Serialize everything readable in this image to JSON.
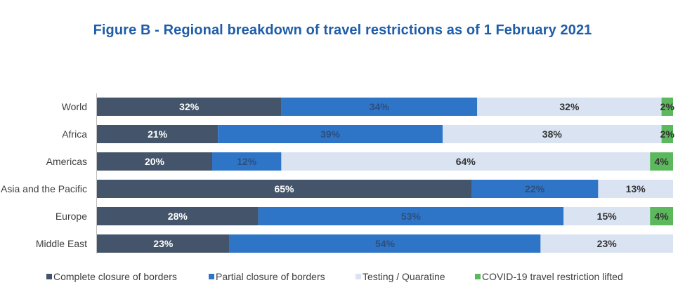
{
  "chart_data": {
    "type": "bar",
    "orientation": "horizontal",
    "stacked": true,
    "percent": true,
    "title": "Figure B - Regional breakdown of travel restrictions as of 1 February 2021",
    "categories": [
      "World",
      "Africa",
      "Americas",
      "Asia and the Pacific",
      "Europe",
      "Middle East"
    ],
    "series": [
      {
        "name": "Complete closure of borders",
        "color": "#44546a",
        "label_color": "#ffffff",
        "values": [
          32,
          21,
          20,
          65,
          28,
          23
        ]
      },
      {
        "name": "Partial closure of borders",
        "color": "#2e75c8",
        "label_color": "#2f4e7a",
        "values": [
          34,
          39,
          12,
          22,
          53,
          54
        ]
      },
      {
        "name": "Testing / Quaratine",
        "color": "#d9e3f1",
        "label_color": "#333333",
        "values": [
          32,
          38,
          64,
          13,
          15,
          23
        ]
      },
      {
        "name": "COVID-19 travel restriction lifted",
        "color": "#5cb85c",
        "label_color": "#333333",
        "values": [
          2,
          2,
          4,
          0,
          4,
          0
        ]
      }
    ],
    "labels": [
      [
        "32%",
        "34%",
        "32%",
        "2%"
      ],
      [
        "21%",
        "39%",
        "38%",
        "2%"
      ],
      [
        "20%",
        "12%",
        "64%",
        "4%"
      ],
      [
        "65%",
        "22%",
        "13%",
        ""
      ],
      [
        "28%",
        "53%",
        "15%",
        "4%"
      ],
      [
        "23%",
        "54%",
        "23%",
        ""
      ]
    ],
    "xlim": [
      0,
      100
    ],
    "legend_position": "bottom",
    "grid": false
  }
}
